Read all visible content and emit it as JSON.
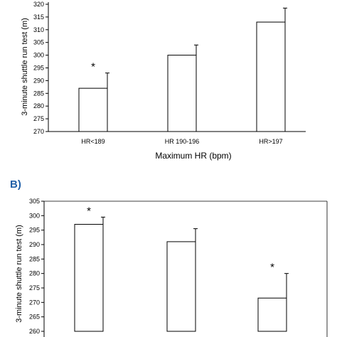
{
  "colors": {
    "panel_label": "#1f5fa8",
    "bar_fill": "#ffffff",
    "bar_stroke": "#000000"
  },
  "chart_data": [
    {
      "type": "bar",
      "panel_label": "",
      "categories": [
        "HR<189",
        "HR 190-196",
        "HR>197"
      ],
      "values": [
        287,
        300,
        313
      ],
      "errors": [
        6,
        4,
        5.5
      ],
      "significance": [
        "*",
        "",
        ""
      ],
      "yticks": [
        270,
        275,
        280,
        285,
        290,
        295,
        300,
        305,
        310,
        315,
        320
      ],
      "ylim": [
        270,
        320
      ],
      "ylabel": "3-minute shuttle run test (m)",
      "xlabel": "Maximum HR (bpm)"
    },
    {
      "type": "bar",
      "panel_label": "B)",
      "categories": [
        "",
        "",
        ""
      ],
      "values": [
        297,
        291,
        271.5
      ],
      "errors": [
        2.5,
        4.5,
        8.5
      ],
      "significance": [
        "*",
        "",
        "*"
      ],
      "yticks": [
        260,
        265,
        270,
        275,
        280,
        285,
        290,
        295,
        300,
        305
      ],
      "ylim": [
        260,
        305
      ],
      "ylabel": "3-minute shuttle run test (m)",
      "xlabel": ""
    }
  ]
}
